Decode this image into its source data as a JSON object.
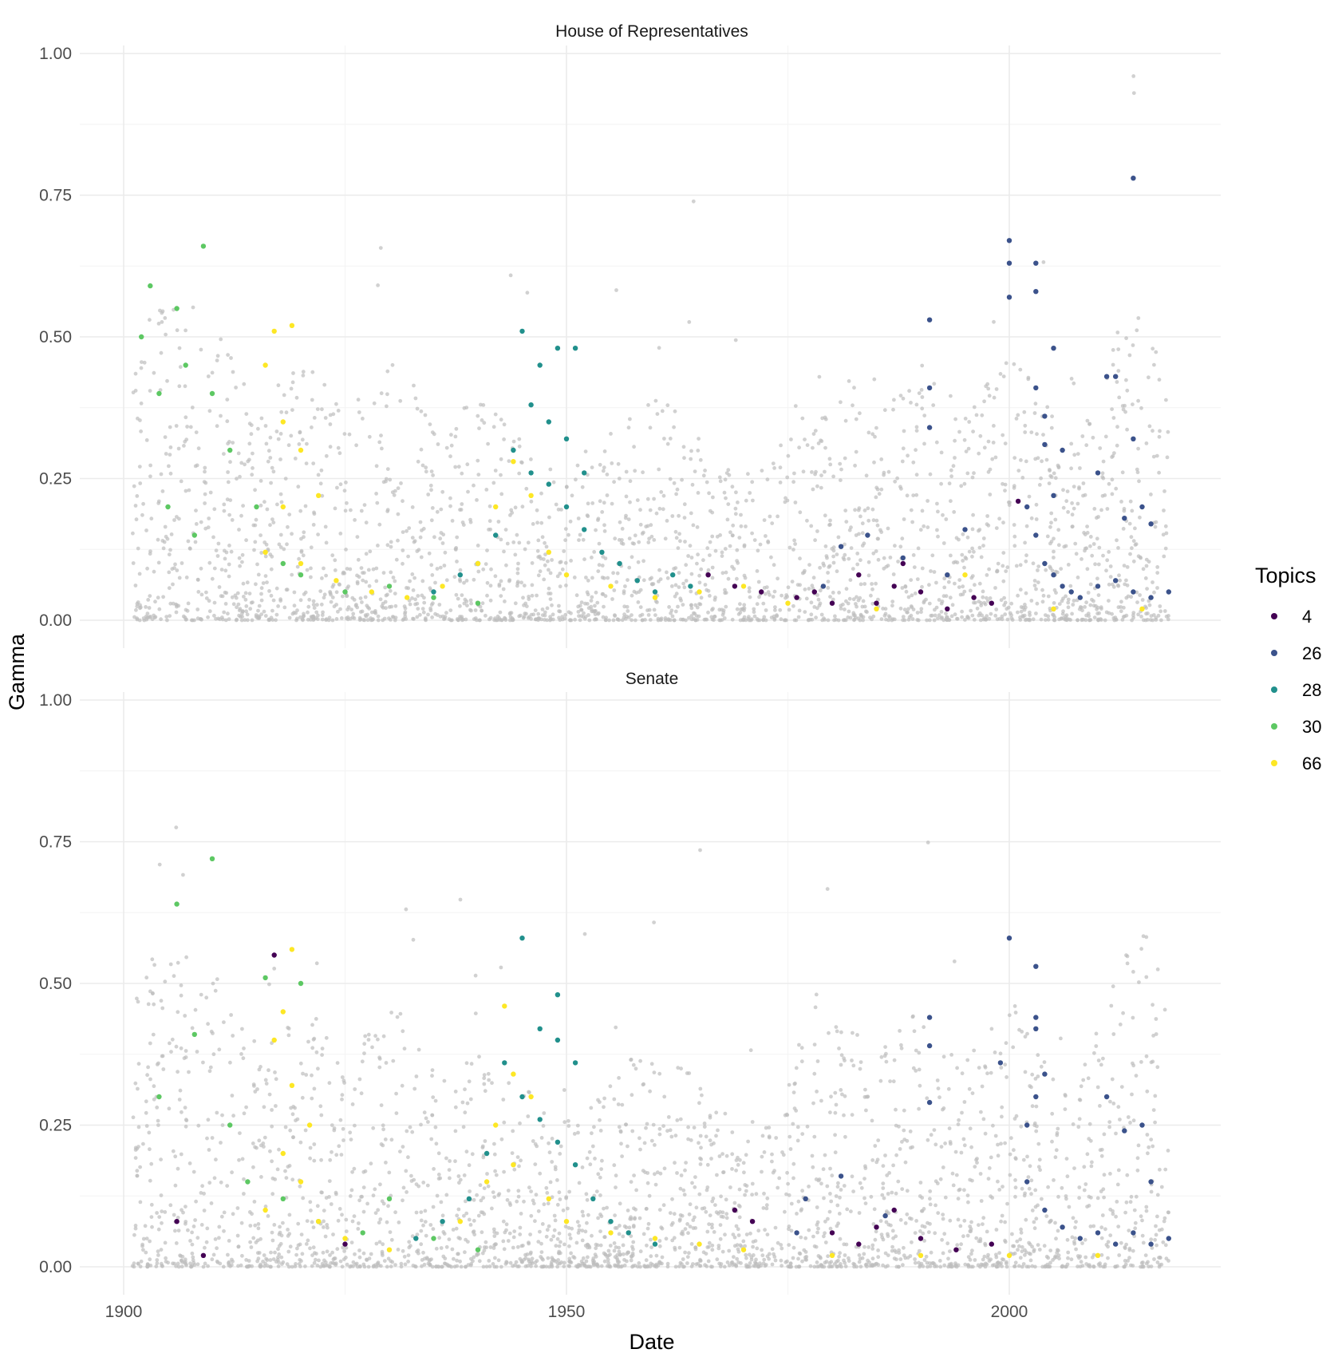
{
  "chart_data": {
    "type": "scatter",
    "xlabel": "Date",
    "ylabel": "Gamma",
    "xlim": [
      1900,
      2020
    ],
    "ylim": [
      0,
      1
    ],
    "x_ticks": [
      "1900",
      "1950",
      "2000"
    ],
    "y_ticks": [
      "0.00",
      "0.25",
      "0.50",
      "0.75",
      "1.00"
    ],
    "grid": true,
    "legend": {
      "title": "Topics",
      "placement": "right",
      "entries": [
        {
          "label": "4",
          "color": "#440154"
        },
        {
          "label": "26",
          "color": "#3b528b"
        },
        {
          "label": "28",
          "color": "#21908c"
        },
        {
          "label": "30",
          "color": "#5dc863"
        },
        {
          "label": "66",
          "color": "#fde725"
        }
      ]
    },
    "background_color": "#bdbdbd",
    "panels": [
      {
        "title": "House of Representatives",
        "series": [
          {
            "name": "4",
            "color": "#440154",
            "points": [
              [
                1985,
                0.03
              ],
              [
                1987,
                0.06
              ],
              [
                1988,
                0.1
              ],
              [
                1990,
                0.05
              ],
              [
                1993,
                0.02
              ],
              [
                1996,
                0.04
              ],
              [
                1998,
                0.03
              ],
              [
                2001,
                0.21
              ],
              [
                1983,
                0.08
              ],
              [
                1980,
                0.03
              ],
              [
                1978,
                0.05
              ],
              [
                1976,
                0.04
              ],
              [
                1972,
                0.05
              ],
              [
                1969,
                0.06
              ],
              [
                1966,
                0.08
              ]
            ]
          },
          {
            "name": "26",
            "color": "#3b528b",
            "points": [
              [
                2000,
                0.67
              ],
              [
                2000,
                0.63
              ],
              [
                2003,
                0.63
              ],
              [
                2003,
                0.58
              ],
              [
                2000,
                0.57
              ],
              [
                2005,
                0.48
              ],
              [
                2003,
                0.41
              ],
              [
                1991,
                0.53
              ],
              [
                1991,
                0.41
              ],
              [
                1991,
                0.34
              ],
              [
                2004,
                0.36
              ],
              [
                2004,
                0.31
              ],
              [
                2006,
                0.3
              ],
              [
                2011,
                0.43
              ],
              [
                2012,
                0.43
              ],
              [
                2014,
                0.78
              ],
              [
                2014,
                0.32
              ],
              [
                2016,
                0.17
              ],
              [
                2015,
                0.2
              ],
              [
                2010,
                0.26
              ],
              [
                2013,
                0.18
              ],
              [
                2005,
                0.22
              ],
              [
                2002,
                0.2
              ],
              [
                2003,
                0.15
              ],
              [
                2004,
                0.1
              ],
              [
                2005,
                0.08
              ],
              [
                2006,
                0.06
              ],
              [
                2007,
                0.05
              ],
              [
                2008,
                0.04
              ],
              [
                2010,
                0.06
              ],
              [
                2012,
                0.07
              ],
              [
                2014,
                0.05
              ],
              [
                2016,
                0.04
              ],
              [
                2018,
                0.05
              ],
              [
                1995,
                0.16
              ],
              [
                1993,
                0.08
              ],
              [
                1988,
                0.11
              ],
              [
                1984,
                0.15
              ],
              [
                1981,
                0.13
              ],
              [
                1979,
                0.06
              ]
            ]
          },
          {
            "name": "28",
            "color": "#21908c",
            "points": [
              [
                1945,
                0.51
              ],
              [
                1947,
                0.45
              ],
              [
                1949,
                0.48
              ],
              [
                1951,
                0.48
              ],
              [
                1946,
                0.38
              ],
              [
                1948,
                0.35
              ],
              [
                1950,
                0.32
              ],
              [
                1952,
                0.26
              ],
              [
                1944,
                0.3
              ],
              [
                1946,
                0.26
              ],
              [
                1948,
                0.24
              ],
              [
                1950,
                0.2
              ],
              [
                1952,
                0.16
              ],
              [
                1954,
                0.12
              ],
              [
                1956,
                0.1
              ],
              [
                1958,
                0.07
              ],
              [
                1960,
                0.05
              ],
              [
                1942,
                0.15
              ],
              [
                1940,
                0.1
              ],
              [
                1938,
                0.08
              ],
              [
                1935,
                0.05
              ],
              [
                1962,
                0.08
              ],
              [
                1964,
                0.06
              ]
            ]
          },
          {
            "name": "30",
            "color": "#5dc863",
            "points": [
              [
                1902,
                0.5
              ],
              [
                1903,
                0.59
              ],
              [
                1906,
                0.55
              ],
              [
                1909,
                0.66
              ],
              [
                1904,
                0.4
              ],
              [
                1907,
                0.45
              ],
              [
                1910,
                0.4
              ],
              [
                1912,
                0.3
              ],
              [
                1915,
                0.2
              ],
              [
                1918,
                0.1
              ],
              [
                1920,
                0.08
              ],
              [
                1925,
                0.05
              ],
              [
                1930,
                0.06
              ],
              [
                1935,
                0.04
              ],
              [
                1940,
                0.03
              ],
              [
                1905,
                0.2
              ],
              [
                1908,
                0.15
              ]
            ]
          },
          {
            "name": "66",
            "color": "#fde725",
            "points": [
              [
                1917,
                0.51
              ],
              [
                1919,
                0.52
              ],
              [
                1916,
                0.45
              ],
              [
                1918,
                0.35
              ],
              [
                1920,
                0.3
              ],
              [
                1922,
                0.22
              ],
              [
                1918,
                0.2
              ],
              [
                1916,
                0.12
              ],
              [
                1920,
                0.1
              ],
              [
                1924,
                0.07
              ],
              [
                1928,
                0.05
              ],
              [
                1932,
                0.04
              ],
              [
                1936,
                0.06
              ],
              [
                1940,
                0.1
              ],
              [
                1942,
                0.2
              ],
              [
                1944,
                0.28
              ],
              [
                1946,
                0.22
              ],
              [
                1948,
                0.12
              ],
              [
                1950,
                0.08
              ],
              [
                1955,
                0.06
              ],
              [
                1960,
                0.04
              ],
              [
                1965,
                0.05
              ],
              [
                1970,
                0.06
              ],
              [
                1975,
                0.03
              ],
              [
                1985,
                0.02
              ],
              [
                1995,
                0.08
              ],
              [
                2005,
                0.02
              ],
              [
                2015,
                0.02
              ]
            ]
          }
        ]
      },
      {
        "title": "Senate",
        "series": [
          {
            "name": "4",
            "color": "#440154",
            "points": [
              [
                1917,
                0.55
              ],
              [
                1906,
                0.08
              ],
              [
                1909,
                0.02
              ],
              [
                1925,
                0.04
              ],
              [
                1971,
                0.08
              ],
              [
                1969,
                0.1
              ],
              [
                1980,
                0.06
              ],
              [
                1983,
                0.04
              ],
              [
                1985,
                0.07
              ],
              [
                1987,
                0.1
              ],
              [
                1990,
                0.05
              ],
              [
                1994,
                0.03
              ],
              [
                1998,
                0.04
              ]
            ]
          },
          {
            "name": "26",
            "color": "#3b528b",
            "points": [
              [
                2000,
                0.58
              ],
              [
                2003,
                0.53
              ],
              [
                2003,
                0.44
              ],
              [
                2003,
                0.42
              ],
              [
                1991,
                0.44
              ],
              [
                1991,
                0.39
              ],
              [
                1991,
                0.29
              ],
              [
                2004,
                0.34
              ],
              [
                2003,
                0.3
              ],
              [
                2002,
                0.25
              ],
              [
                1999,
                0.36
              ],
              [
                2011,
                0.3
              ],
              [
                2013,
                0.24
              ],
              [
                2015,
                0.25
              ],
              [
                2016,
                0.15
              ],
              [
                2002,
                0.15
              ],
              [
                2004,
                0.1
              ],
              [
                2006,
                0.07
              ],
              [
                2008,
                0.05
              ],
              [
                2010,
                0.06
              ],
              [
                2012,
                0.04
              ],
              [
                2014,
                0.06
              ],
              [
                2016,
                0.04
              ],
              [
                2018,
                0.05
              ],
              [
                1981,
                0.16
              ],
              [
                1977,
                0.12
              ],
              [
                1976,
                0.06
              ],
              [
                1986,
                0.09
              ]
            ]
          },
          {
            "name": "28",
            "color": "#21908c",
            "points": [
              [
                1945,
                0.58
              ],
              [
                1949,
                0.48
              ],
              [
                1947,
                0.42
              ],
              [
                1949,
                0.4
              ],
              [
                1951,
                0.36
              ],
              [
                1943,
                0.36
              ],
              [
                1945,
                0.3
              ],
              [
                1947,
                0.26
              ],
              [
                1949,
                0.22
              ],
              [
                1951,
                0.18
              ],
              [
                1953,
                0.12
              ],
              [
                1955,
                0.08
              ],
              [
                1957,
                0.06
              ],
              [
                1941,
                0.2
              ],
              [
                1939,
                0.12
              ],
              [
                1936,
                0.08
              ],
              [
                1933,
                0.05
              ],
              [
                1960,
                0.04
              ]
            ]
          },
          {
            "name": "30",
            "color": "#5dc863",
            "points": [
              [
                1906,
                0.64
              ],
              [
                1910,
                0.72
              ],
              [
                1916,
                0.51
              ],
              [
                1920,
                0.5
              ],
              [
                1904,
                0.3
              ],
              [
                1908,
                0.41
              ],
              [
                1912,
                0.25
              ],
              [
                1914,
                0.15
              ],
              [
                1918,
                0.12
              ],
              [
                1922,
                0.08
              ],
              [
                1927,
                0.06
              ],
              [
                1930,
                0.12
              ],
              [
                1935,
                0.05
              ],
              [
                1940,
                0.03
              ]
            ]
          },
          {
            "name": "66",
            "color": "#fde725",
            "points": [
              [
                1919,
                0.56
              ],
              [
                1918,
                0.45
              ],
              [
                1917,
                0.4
              ],
              [
                1919,
                0.32
              ],
              [
                1921,
                0.25
              ],
              [
                1918,
                0.2
              ],
              [
                1920,
                0.15
              ],
              [
                1916,
                0.1
              ],
              [
                1922,
                0.08
              ],
              [
                1925,
                0.05
              ],
              [
                1930,
                0.03
              ],
              [
                1938,
                0.08
              ],
              [
                1941,
                0.15
              ],
              [
                1943,
                0.46
              ],
              [
                1944,
                0.34
              ],
              [
                1946,
                0.3
              ],
              [
                1942,
                0.25
              ],
              [
                1944,
                0.18
              ],
              [
                1948,
                0.12
              ],
              [
                1950,
                0.08
              ],
              [
                1955,
                0.06
              ],
              [
                1960,
                0.05
              ],
              [
                1965,
                0.04
              ],
              [
                1970,
                0.03
              ],
              [
                1980,
                0.02
              ],
              [
                1990,
                0.02
              ],
              [
                2000,
                0.02
              ],
              [
                2010,
                0.02
              ]
            ]
          }
        ]
      }
    ]
  }
}
